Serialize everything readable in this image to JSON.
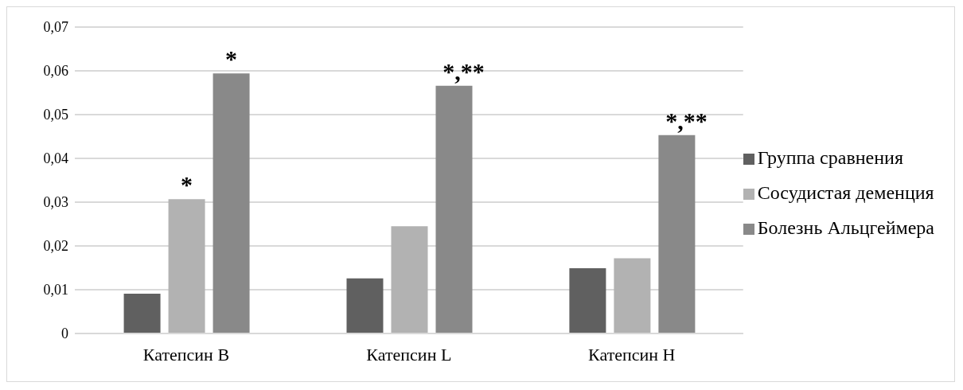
{
  "chart_data": {
    "type": "bar",
    "categories": [
      "Катепсин B",
      "Катепсин L",
      "Катепсин H"
    ],
    "series": [
      {
        "name": "Группа сравнения",
        "color": "#606060",
        "values": [
          0.0091,
          0.0126,
          0.0149
        ]
      },
      {
        "name": "Сосудистая деменция",
        "color": "#b2b2b2",
        "values": [
          0.0307,
          0.0245,
          0.0172
        ],
        "value_labels": [
          "*",
          null,
          null
        ]
      },
      {
        "name": "Болезнь Альцгеймера",
        "color": "#898989",
        "values": [
          0.0594,
          0.0566,
          0.0453
        ],
        "value_labels": [
          "*",
          "*,**",
          "*,**"
        ]
      }
    ],
    "ylim": [
      0,
      0.07
    ],
    "yticks": [
      {
        "value": 0,
        "label": "0"
      },
      {
        "value": 0.01,
        "label": "0,01"
      },
      {
        "value": 0.02,
        "label": "0,02"
      },
      {
        "value": 0.03,
        "label": "0,03"
      },
      {
        "value": 0.04,
        "label": "0,04"
      },
      {
        "value": 0.05,
        "label": "0,05"
      },
      {
        "value": 0.06,
        "label": "0,06"
      },
      {
        "value": 0.07,
        "label": "0,07"
      }
    ],
    "grid": "y",
    "legend": "right"
  }
}
